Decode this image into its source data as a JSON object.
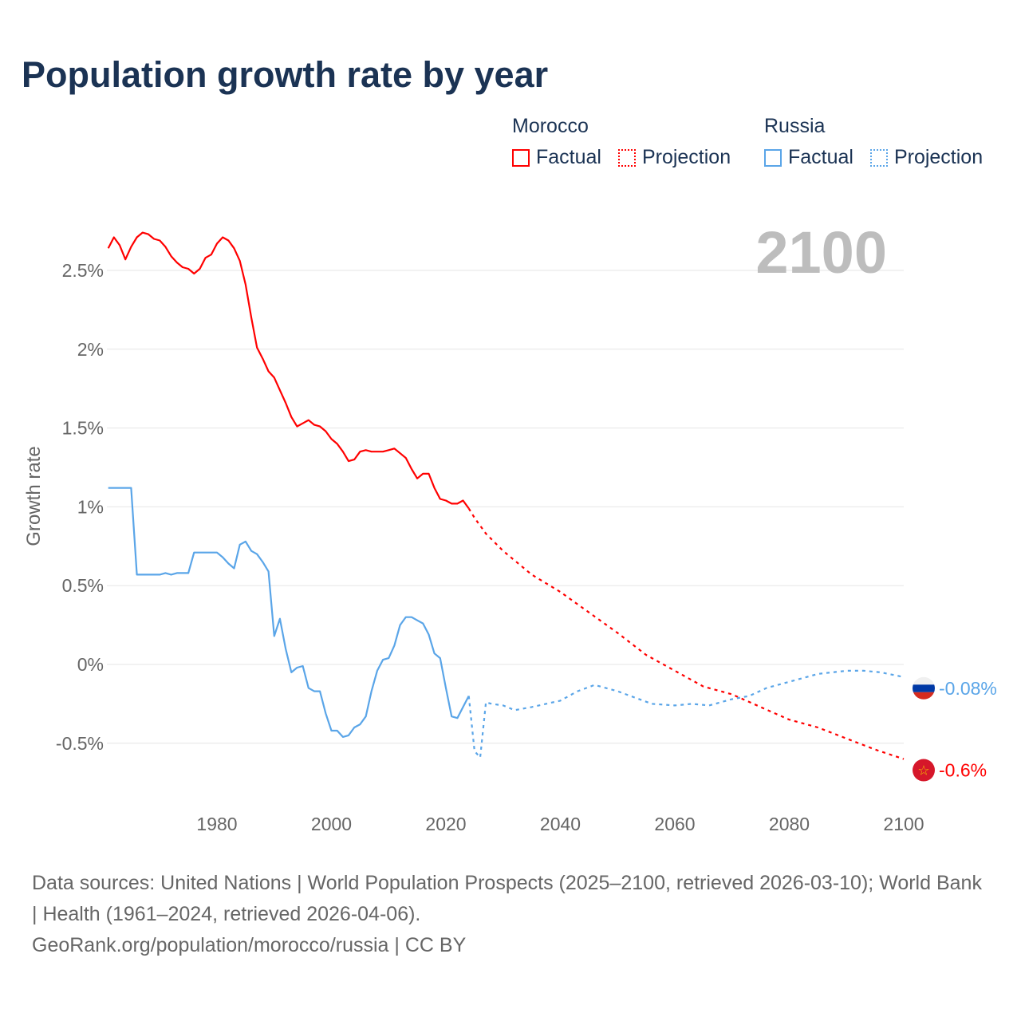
{
  "title": "Population growth rate by year",
  "legend": {
    "groups": [
      {
        "name": "Morocco",
        "color": "#ff0000",
        "items": [
          {
            "label": "Factual",
            "style": "solid"
          },
          {
            "label": "Projection",
            "style": "dotted"
          }
        ]
      },
      {
        "name": "Russia",
        "color": "#5aa5e8",
        "items": [
          {
            "label": "Factual",
            "style": "solid"
          },
          {
            "label": "Projection",
            "style": "dotted"
          }
        ]
      }
    ]
  },
  "footer": {
    "sources": "Data sources: United Nations | World Population Prospects (2025–2100, retrieved 2026-03-10); World Bank | Health (1961–2024, retrieved 2026-04-06).",
    "credit": "GeoRank.org/population/morocco/russia | CC BY"
  },
  "chart_data": {
    "type": "line",
    "title": "Population growth rate by year",
    "xlabel": "",
    "ylabel": "Growth rate",
    "year_label": "2100",
    "xlim": [
      1961,
      2100
    ],
    "ylim": [
      -0.8,
      2.8
    ],
    "x_ticks": [
      1980,
      2000,
      2020,
      2040,
      2060,
      2080,
      2100
    ],
    "x_tick_labels": [
      "1980",
      "2000",
      "2020",
      "2040",
      "2060",
      "2080",
      "2100"
    ],
    "y_ticks": [
      -0.5,
      0,
      0.5,
      1,
      1.5,
      2,
      2.5
    ],
    "y_tick_labels": [
      "-0.5%",
      "0%",
      "0.5%",
      "1%",
      "1.5%",
      "2%",
      "2.5%"
    ],
    "grid": "horizontal",
    "legend_position": "top-right",
    "series": [
      {
        "name": "Morocco Factual",
        "country": "Morocco",
        "color": "#ff0000",
        "dash": false,
        "x": [
          1961,
          1962,
          1963,
          1964,
          1965,
          1966,
          1967,
          1968,
          1969,
          1970,
          1971,
          1972,
          1973,
          1974,
          1975,
          1976,
          1977,
          1978,
          1979,
          1980,
          1981,
          1982,
          1983,
          1984,
          1985,
          1986,
          1987,
          1988,
          1989,
          1990,
          1991,
          1992,
          1993,
          1994,
          1995,
          1996,
          1997,
          1998,
          1999,
          2000,
          2001,
          2002,
          2003,
          2004,
          2005,
          2006,
          2007,
          2008,
          2009,
          2010,
          2011,
          2012,
          2013,
          2014,
          2015,
          2016,
          2017,
          2018,
          2019,
          2020,
          2021,
          2022,
          2023,
          2024
        ],
        "y": [
          2.64,
          2.71,
          2.66,
          2.57,
          2.65,
          2.71,
          2.74,
          2.73,
          2.7,
          2.69,
          2.65,
          2.59,
          2.55,
          2.52,
          2.51,
          2.48,
          2.51,
          2.58,
          2.6,
          2.67,
          2.71,
          2.69,
          2.64,
          2.56,
          2.41,
          2.2,
          2.01,
          1.94,
          1.86,
          1.82,
          1.74,
          1.66,
          1.57,
          1.51,
          1.53,
          1.55,
          1.52,
          1.51,
          1.48,
          1.43,
          1.4,
          1.35,
          1.29,
          1.3,
          1.35,
          1.36,
          1.35,
          1.35,
          1.35,
          1.36,
          1.37,
          1.34,
          1.31,
          1.24,
          1.18,
          1.21,
          1.21,
          1.12,
          1.05,
          1.04,
          1.02,
          1.02,
          1.04,
          0.99
        ]
      },
      {
        "name": "Morocco Projection",
        "country": "Morocco",
        "color": "#ff0000",
        "dash": true,
        "x": [
          2024,
          2025,
          2027,
          2030,
          2035,
          2040,
          2045,
          2050,
          2055,
          2060,
          2065,
          2070,
          2075,
          2080,
          2085,
          2090,
          2095,
          2100
        ],
        "y": [
          0.99,
          0.93,
          0.83,
          0.72,
          0.57,
          0.46,
          0.33,
          0.2,
          0.06,
          -0.04,
          -0.14,
          -0.19,
          -0.27,
          -0.35,
          -0.4,
          -0.47,
          -0.54,
          -0.6
        ]
      },
      {
        "name": "Russia Factual",
        "country": "Russia",
        "color": "#5aa5e8",
        "dash": false,
        "x": [
          1961,
          1962,
          1963,
          1964,
          1965,
          1966,
          1967,
          1968,
          1969,
          1970,
          1971,
          1972,
          1973,
          1974,
          1975,
          1976,
          1977,
          1978,
          1979,
          1980,
          1981,
          1982,
          1983,
          1984,
          1985,
          1986,
          1987,
          1988,
          1989,
          1990,
          1991,
          1992,
          1993,
          1994,
          1995,
          1996,
          1997,
          1998,
          1999,
          2000,
          2001,
          2002,
          2003,
          2004,
          2005,
          2006,
          2007,
          2008,
          2009,
          2010,
          2011,
          2012,
          2013,
          2014,
          2015,
          2016,
          2017,
          2018,
          2019,
          2020,
          2021,
          2022,
          2023,
          2024
        ],
        "y": [
          1.12,
          1.12,
          1.12,
          1.12,
          1.12,
          0.57,
          0.57,
          0.57,
          0.57,
          0.57,
          0.58,
          0.57,
          0.58,
          0.58,
          0.58,
          0.71,
          0.71,
          0.71,
          0.71,
          0.71,
          0.68,
          0.64,
          0.61,
          0.76,
          0.78,
          0.72,
          0.7,
          0.65,
          0.59,
          0.18,
          0.29,
          0.1,
          -0.05,
          -0.02,
          -0.01,
          -0.15,
          -0.17,
          -0.17,
          -0.31,
          -0.42,
          -0.42,
          -0.46,
          -0.45,
          -0.4,
          -0.38,
          -0.33,
          -0.17,
          -0.04,
          0.03,
          0.04,
          0.12,
          0.25,
          0.3,
          0.3,
          0.28,
          0.26,
          0.19,
          0.07,
          0.04,
          -0.15,
          -0.33,
          -0.34,
          -0.27,
          -0.2
        ]
      },
      {
        "name": "Russia Projection",
        "country": "Russia",
        "color": "#5aa5e8",
        "dash": true,
        "x": [
          2024,
          2025,
          2026,
          2027,
          2028,
          2030,
          2032,
          2035,
          2040,
          2043,
          2046,
          2050,
          2053,
          2056,
          2060,
          2063,
          2066,
          2070,
          2073,
          2076,
          2080,
          2085,
          2090,
          2093,
          2096,
          2100
        ],
        "y": [
          -0.2,
          -0.55,
          -0.59,
          -0.24,
          -0.25,
          -0.26,
          -0.29,
          -0.27,
          -0.23,
          -0.17,
          -0.13,
          -0.17,
          -0.21,
          -0.25,
          -0.26,
          -0.25,
          -0.26,
          -0.22,
          -0.2,
          -0.15,
          -0.11,
          -0.06,
          -0.04,
          -0.04,
          -0.05,
          -0.08
        ]
      }
    ],
    "end_labels": [
      {
        "country": "Russia",
        "label": "-0.08%",
        "value": -0.08,
        "color": "#5aa5e8",
        "flag": "russia-flag"
      },
      {
        "country": "Morocco",
        "label": "-0.6%",
        "value": -0.6,
        "color": "#ff0000",
        "flag": "morocco-flag"
      }
    ]
  }
}
